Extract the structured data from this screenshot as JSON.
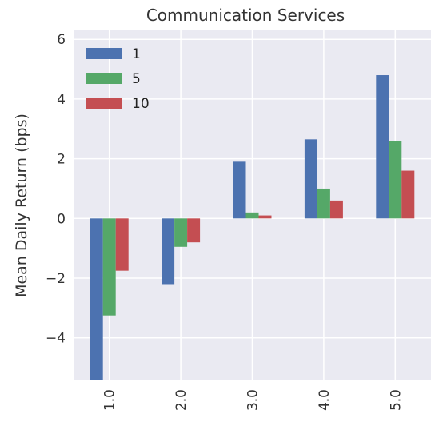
{
  "chart_data": {
    "type": "bar",
    "title": "Communication Services",
    "xlabel": "",
    "ylabel": "Mean Daily Return (bps)",
    "categories": [
      "1.0",
      "2.0",
      "3.0",
      "4.0",
      "5.0"
    ],
    "series": [
      {
        "name": "1",
        "color": "#4C72B0",
        "values": [
          -5.4,
          -2.2,
          1.9,
          2.65,
          4.8
        ]
      },
      {
        "name": "5",
        "color": "#55A868",
        "values": [
          -3.25,
          -0.95,
          0.2,
          1.0,
          2.6
        ]
      },
      {
        "name": "10",
        "color": "#C44E52",
        "values": [
          -1.75,
          -0.8,
          0.1,
          0.6,
          1.6
        ]
      }
    ],
    "ylim": [
      -5.4,
      6.3
    ],
    "yticks": [
      "−4",
      "−2",
      "0",
      "2",
      "4",
      "6"
    ],
    "ytick_values": [
      -4,
      -2,
      0,
      2,
      4,
      6
    ],
    "grid": true,
    "legend_position": "top-left",
    "background": "#EAEAF2"
  }
}
